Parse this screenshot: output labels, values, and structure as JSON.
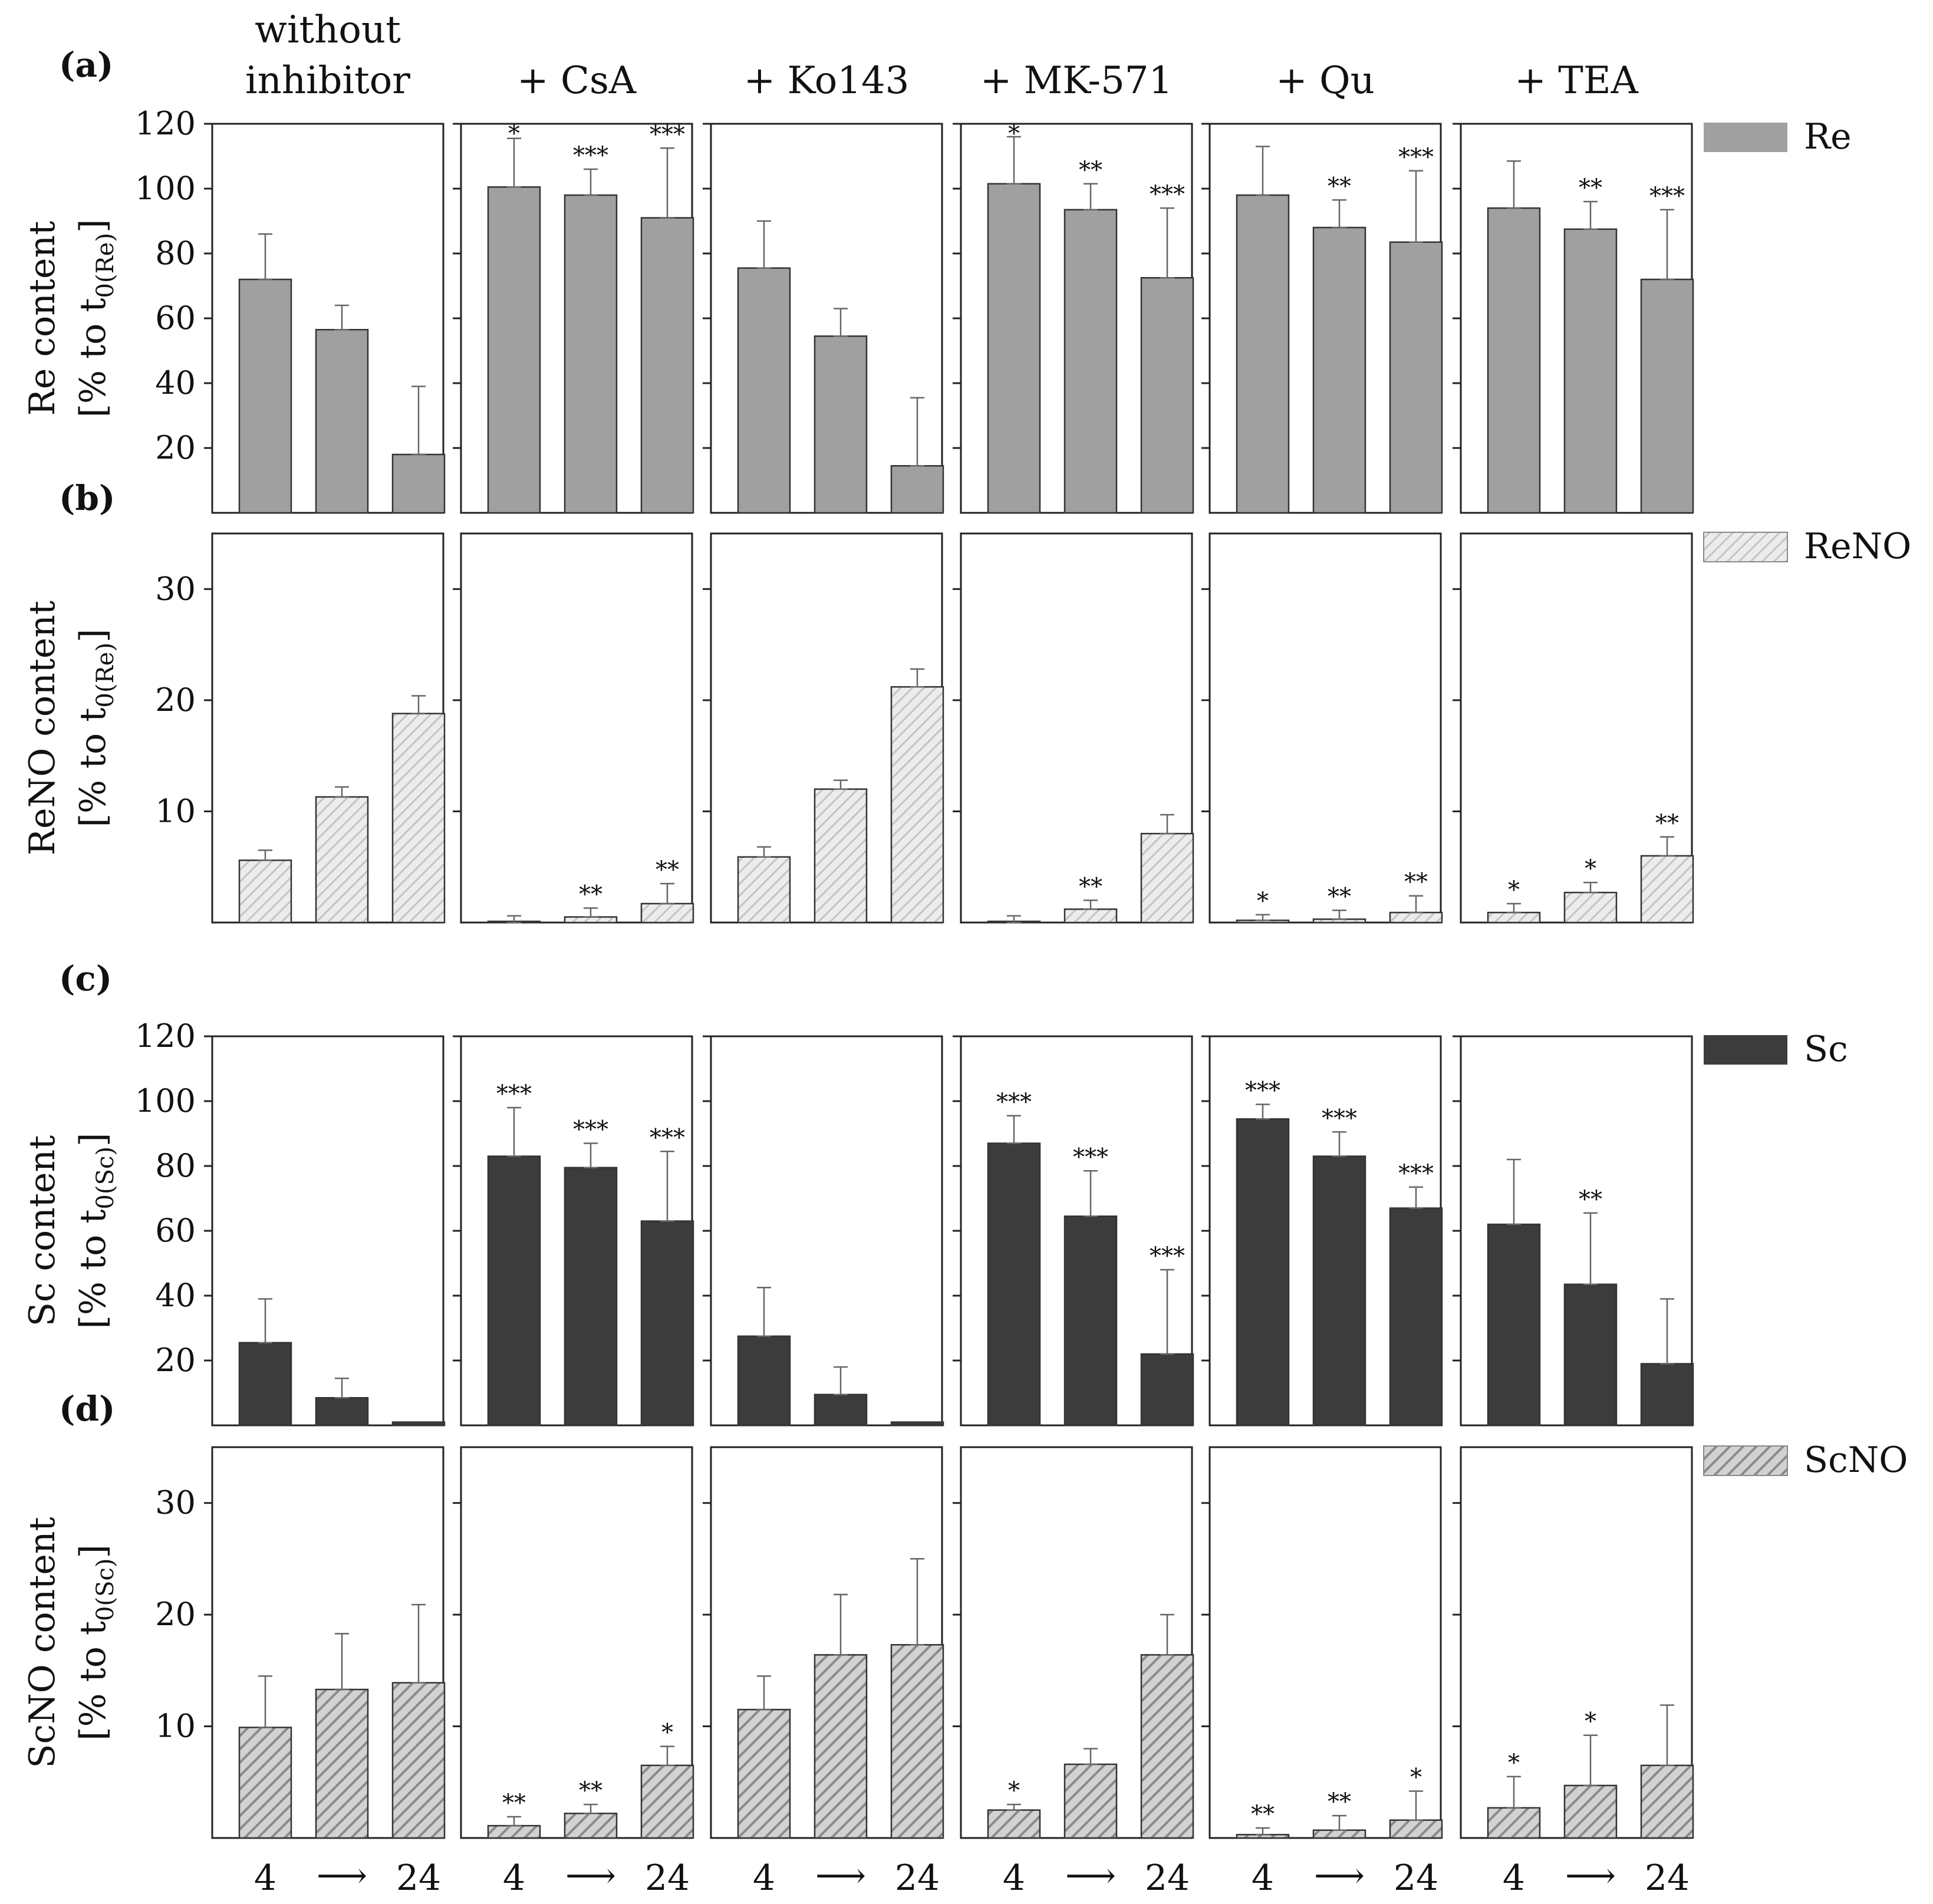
{
  "columns": [
    "without\ninhibitor",
    "+ CsA",
    "+ Ko143",
    "+ MK-571",
    "+ Qu",
    "+ TEA"
  ],
  "colors": {
    "Re": "#a0a0a0",
    "ReNO": "#e2e2e2",
    "Sc": "#3c3c3c",
    "ScNO": "#bcbcbc",
    "axis": "#222222"
  },
  "xaxis": {
    "start": "4",
    "end": "24",
    "arrow": "⟶"
  },
  "chart_data": [
    {
      "panel": "(a)",
      "type": "bar",
      "legend": "Re",
      "ylabel": "Re content",
      "ylabel_unit_prefix": "[% to t",
      "ylabel_sub": "0(Re)",
      "ylabel_suffix": "]",
      "ylim": [
        0,
        120
      ],
      "yticks": [
        20,
        40,
        60,
        80,
        100,
        120
      ],
      "categories": [
        "4",
        "",
        "24"
      ],
      "series": [
        {
          "name": "without inhibitor",
          "values": [
            72,
            56.5,
            18
          ],
          "errors": [
            14,
            7.5,
            21
          ],
          "sig": [
            "",
            "",
            ""
          ]
        },
        {
          "name": "+ CsA",
          "values": [
            100.5,
            98,
            91
          ],
          "errors": [
            15,
            8,
            21.5
          ],
          "sig": [
            "*",
            "***",
            "***"
          ]
        },
        {
          "name": "+ Ko143",
          "values": [
            75.5,
            54.5,
            14.5
          ],
          "errors": [
            14.5,
            8.5,
            21
          ],
          "sig": [
            "",
            "",
            ""
          ]
        },
        {
          "name": "+ MK-571",
          "values": [
            101.5,
            93.5,
            72.5
          ],
          "errors": [
            14.5,
            8,
            21.5
          ],
          "sig": [
            "*",
            "**",
            "***"
          ]
        },
        {
          "name": "+ Qu",
          "values": [
            98,
            88,
            83.5
          ],
          "errors": [
            15,
            8.5,
            22
          ],
          "sig": [
            "",
            "**",
            "***"
          ]
        },
        {
          "name": "+ TEA",
          "values": [
            94,
            87.5,
            72
          ],
          "errors": [
            14.5,
            8.5,
            21.5
          ],
          "sig": [
            "",
            "**",
            "***"
          ]
        }
      ]
    },
    {
      "panel": "(b)",
      "type": "bar",
      "legend": "ReNO",
      "ylabel": "ReNO content",
      "ylabel_unit_prefix": "[% to t",
      "ylabel_sub": "0(Re)",
      "ylabel_suffix": "]",
      "ylim": [
        0,
        35
      ],
      "yticks": [
        10,
        20,
        30
      ],
      "categories": [
        "4",
        "",
        "24"
      ],
      "series": [
        {
          "name": "without inhibitor",
          "values": [
            5.6,
            11.3,
            18.8
          ],
          "errors": [
            0.9,
            0.9,
            1.6
          ],
          "sig": [
            "",
            "",
            ""
          ]
        },
        {
          "name": "+ CsA",
          "values": [
            0,
            0.5,
            1.7
          ],
          "errors": [
            0.6,
            0.8,
            1.8
          ],
          "sig": [
            "",
            "**",
            "**"
          ]
        },
        {
          "name": "+ Ko143",
          "values": [
            5.9,
            12,
            21.2
          ],
          "errors": [
            0.9,
            0.8,
            1.6
          ],
          "sig": [
            "",
            "",
            ""
          ]
        },
        {
          "name": "+ MK-571",
          "values": [
            0,
            1.2,
            8
          ],
          "errors": [
            0.6,
            0.8,
            1.7
          ],
          "sig": [
            "",
            "**",
            ""
          ]
        },
        {
          "name": "+ Qu",
          "values": [
            0.2,
            0.3,
            0.9
          ],
          "errors": [
            0.5,
            0.8,
            1.5
          ],
          "sig": [
            "*",
            "**",
            "**"
          ]
        },
        {
          "name": "+ TEA",
          "values": [
            0.9,
            2.7,
            6
          ],
          "errors": [
            0.8,
            0.9,
            1.7
          ],
          "sig": [
            "*",
            "*",
            "**"
          ]
        }
      ]
    },
    {
      "panel": "(c)",
      "type": "bar",
      "legend": "Sc",
      "ylabel": "Sc content",
      "ylabel_unit_prefix": "[% to t",
      "ylabel_sub": "0(Sc)",
      "ylabel_suffix": "]",
      "ylim": [
        0,
        120
      ],
      "yticks": [
        20,
        40,
        60,
        80,
        100,
        120
      ],
      "categories": [
        "4",
        "",
        "24"
      ],
      "series": [
        {
          "name": "without inhibitor",
          "values": [
            25.5,
            8.5,
            1
          ],
          "errors": [
            13.5,
            6,
            0
          ],
          "sig": [
            "",
            "",
            ""
          ]
        },
        {
          "name": "+ CsA",
          "values": [
            83,
            79.5,
            63
          ],
          "errors": [
            15,
            7.5,
            21.5
          ],
          "sig": [
            "***",
            "***",
            "***"
          ]
        },
        {
          "name": "+ Ko143",
          "values": [
            27.5,
            9.5,
            1
          ],
          "errors": [
            15,
            8.5,
            0
          ],
          "sig": [
            "",
            "",
            ""
          ]
        },
        {
          "name": "+ MK-571",
          "values": [
            87,
            64.5,
            22
          ],
          "errors": [
            8.5,
            14,
            26
          ],
          "sig": [
            "***",
            "***",
            "***"
          ]
        },
        {
          "name": "+ Qu",
          "values": [
            94.5,
            83,
            67
          ],
          "errors": [
            4.5,
            7.5,
            6.5
          ],
          "sig": [
            "***",
            "***",
            "***"
          ]
        },
        {
          "name": "+ TEA",
          "values": [
            62,
            43.5,
            19
          ],
          "errors": [
            20,
            22,
            20
          ],
          "sig": [
            "",
            "**",
            ""
          ]
        }
      ]
    },
    {
      "panel": "(d)",
      "type": "bar",
      "legend": "ScNO",
      "ylabel": "ScNO content",
      "ylabel_unit_prefix": "[% to t",
      "ylabel_sub": "0(Sc)",
      "ylabel_suffix": "]",
      "ylim": [
        0,
        35
      ],
      "yticks": [
        10,
        20,
        30
      ],
      "categories": [
        "4",
        "",
        "24"
      ],
      "series": [
        {
          "name": "without inhibitor",
          "values": [
            9.9,
            13.3,
            13.9
          ],
          "errors": [
            4.6,
            5,
            7
          ],
          "sig": [
            "",
            "",
            ""
          ]
        },
        {
          "name": "+ CsA",
          "values": [
            1.1,
            2.2,
            6.5
          ],
          "errors": [
            0.8,
            0.8,
            1.7
          ],
          "sig": [
            "**",
            "**",
            "*"
          ]
        },
        {
          "name": "+ Ko143",
          "values": [
            11.5,
            16.4,
            17.3
          ],
          "errors": [
            3,
            5.4,
            7.7
          ],
          "sig": [
            "",
            "",
            ""
          ]
        },
        {
          "name": "+ MK-571",
          "values": [
            2.5,
            6.6,
            16.4
          ],
          "errors": [
            0.5,
            1.4,
            3.6
          ],
          "sig": [
            "*",
            "",
            ""
          ]
        },
        {
          "name": "+ Qu",
          "values": [
            0.3,
            0.7,
            1.6
          ],
          "errors": [
            0.6,
            1.3,
            2.6
          ],
          "sig": [
            "**",
            "**",
            "*"
          ]
        },
        {
          "name": "+ TEA",
          "values": [
            2.7,
            4.7,
            6.5
          ],
          "errors": [
            2.8,
            4.5,
            5.4
          ],
          "sig": [
            "*",
            "*",
            ""
          ]
        }
      ]
    }
  ]
}
